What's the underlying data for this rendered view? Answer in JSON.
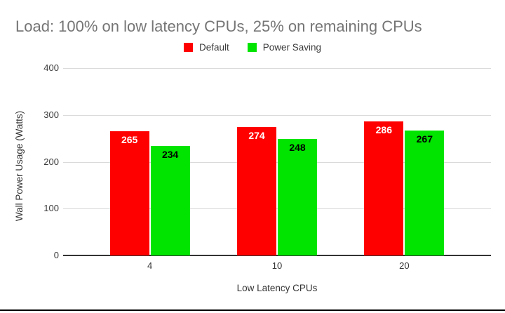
{
  "chart_data": {
    "type": "bar",
    "title": "Load: 100% on low latency CPUs, 25% on remaining CPUs",
    "xlabel": "Low Latency CPUs",
    "ylabel": "Wall Power Usage (Watts)",
    "categories": [
      "4",
      "10",
      "20"
    ],
    "series": [
      {
        "name": "Default",
        "color": "#ff0000",
        "label_color": "#ffffff",
        "values": [
          265,
          274,
          286
        ]
      },
      {
        "name": "Power Saving",
        "color": "#00e400",
        "label_color": "#000000",
        "values": [
          234,
          248,
          267
        ]
      }
    ],
    "y_ticks": [
      0,
      100,
      200,
      300,
      400
    ],
    "ylim": [
      0,
      400
    ],
    "grid": true,
    "legend_position": "top",
    "title_color": "#757575",
    "axis_color": "#333333",
    "gridline_color": "#dadada"
  }
}
